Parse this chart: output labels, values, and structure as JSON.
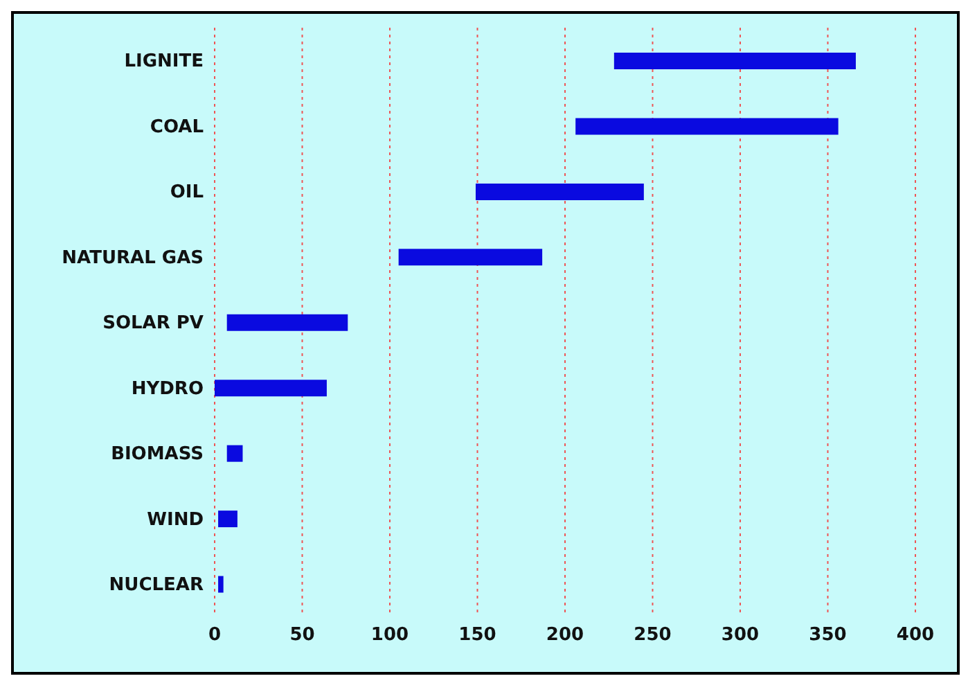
{
  "chart_data": {
    "type": "bar",
    "orientation": "horizontal",
    "categories": [
      "LIGNITE",
      "COAL",
      "OIL",
      "NATURAL GAS",
      "SOLAR PV",
      "HYDRO",
      "BIOMASS",
      "WIND",
      "NUCLEAR"
    ],
    "base": [
      228,
      206,
      149,
      105,
      7,
      0,
      7,
      2,
      2
    ],
    "values": [
      138,
      150,
      96,
      82,
      69,
      64,
      9,
      11,
      3
    ],
    "color": "#0a0ae0",
    "xlim": [
      0,
      400
    ],
    "xticks": [
      0,
      50,
      100,
      150,
      200,
      250,
      300,
      350,
      400
    ],
    "grid": "x"
  }
}
